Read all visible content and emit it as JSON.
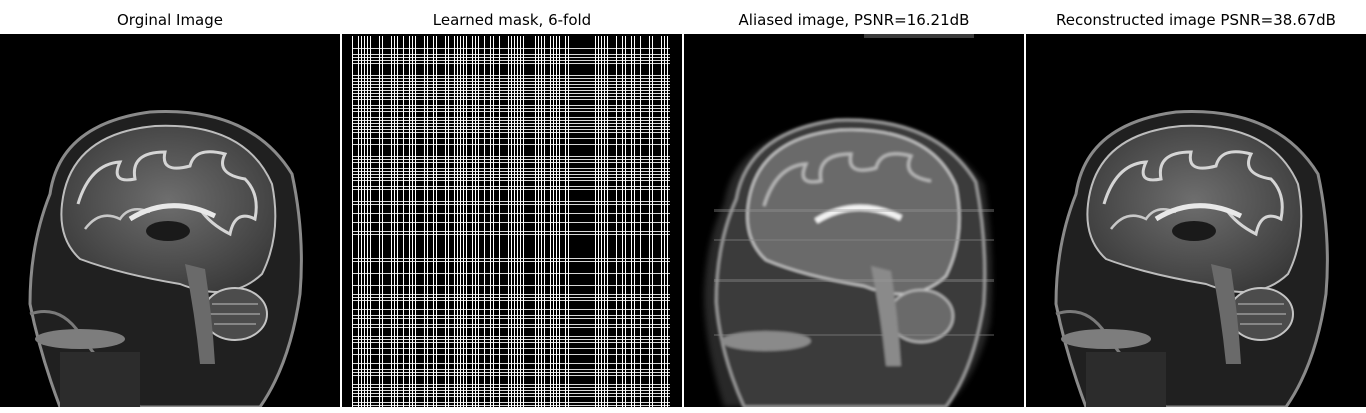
{
  "figure": {
    "panels": [
      {
        "title": "Orginal Image",
        "image": "brain-mri-sagittal"
      },
      {
        "title": "Learned mask, 6-fold",
        "image": "sampling-mask"
      },
      {
        "title": "Aliased image, PSNR=16.21dB",
        "image": "brain-mri-aliased"
      },
      {
        "title": "Reconstructed image PSNR=38.67dB",
        "image": "brain-mri-reconstructed"
      }
    ]
  },
  "colors": {
    "background": "#ffffff",
    "image_background": "#000000",
    "tissue_gray": "#5a5a5a",
    "tissue_light": "#cfcfcf",
    "mask_white": "#ffffff"
  }
}
